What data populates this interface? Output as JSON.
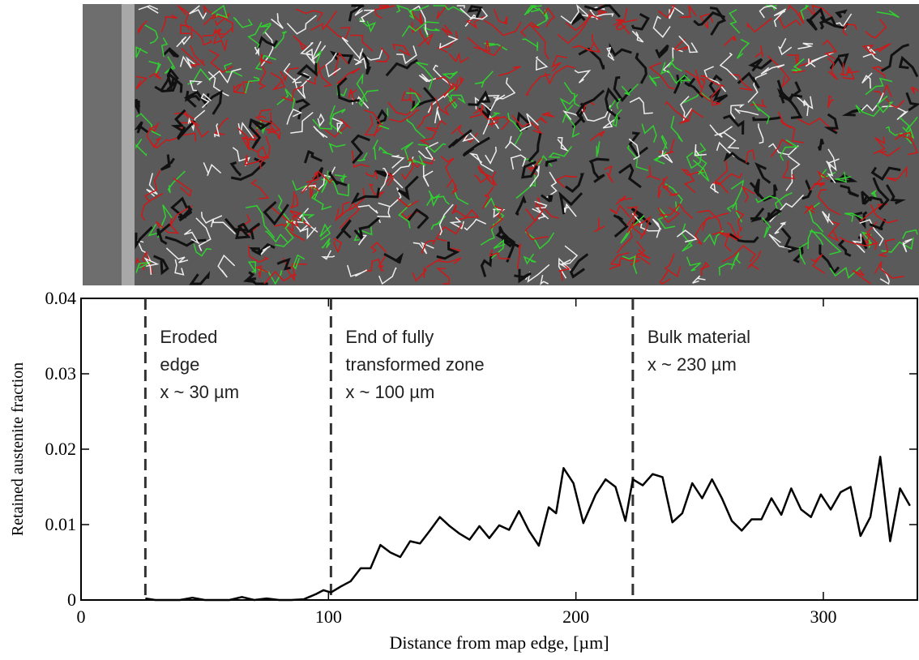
{
  "chart_data": {
    "type": "line",
    "x_label": "Distance from map edge, [µm]",
    "y_label": "Retained austenite fraction",
    "xlim": [
      0,
      338
    ],
    "ylim": [
      0,
      0.04
    ],
    "xticks": [
      0,
      100,
      200,
      300
    ],
    "yticks": [
      0,
      0.01,
      0.02,
      0.03,
      0.04
    ],
    "color": "#000000",
    "x": [
      26,
      30,
      35,
      40,
      45,
      50,
      55,
      60,
      65,
      70,
      75,
      80,
      85,
      90,
      95,
      98,
      101,
      105,
      109,
      113,
      117,
      121,
      125,
      129,
      133,
      137,
      141,
      145,
      149,
      153,
      157,
      161,
      165,
      169,
      173,
      177,
      181,
      185,
      189,
      192,
      195,
      199,
      203,
      208,
      212,
      216,
      220,
      223,
      227,
      231,
      235,
      239,
      243,
      247,
      251,
      255,
      259,
      263,
      267,
      271,
      275,
      279,
      283,
      287,
      291,
      295,
      299,
      303,
      307,
      311,
      315,
      319,
      323,
      327,
      331,
      335
    ],
    "values": [
      0.0002,
      0,
      0,
      0,
      0.0003,
      0,
      0,
      0,
      0.0004,
      0,
      0.0002,
      0,
      0,
      0.0001,
      0.0008,
      0.0013,
      0.001,
      0.0018,
      0.0025,
      0.0042,
      0.0042,
      0.0073,
      0.0063,
      0.0057,
      0.0078,
      0.0075,
      0.0092,
      0.011,
      0.0098,
      0.0088,
      0.008,
      0.0098,
      0.0082,
      0.0099,
      0.0093,
      0.0118,
      0.0092,
      0.0072,
      0.0123,
      0.0115,
      0.0175,
      0.0155,
      0.0102,
      0.014,
      0.016,
      0.015,
      0.0105,
      0.016,
      0.0152,
      0.0167,
      0.0163,
      0.0103,
      0.0115,
      0.0155,
      0.0135,
      0.016,
      0.0135,
      0.0105,
      0.0092,
      0.0107,
      0.0107,
      0.0135,
      0.0113,
      0.0148,
      0.012,
      0.011,
      0.014,
      0.012,
      0.0143,
      0.015,
      0.0085,
      0.011,
      0.019,
      0.0078,
      0.0148,
      0.0125
    ],
    "annotations": [
      {
        "x": 26,
        "lines": [
          "Eroded",
          "edge",
          "x ~ 30 µm"
        ]
      },
      {
        "x": 101,
        "lines": [
          "End of fully",
          "transformed zone",
          "x ~ 100 µm"
        ]
      },
      {
        "x": 223,
        "lines": [
          "Bulk material",
          "x ~ 230 µm"
        ]
      }
    ]
  }
}
